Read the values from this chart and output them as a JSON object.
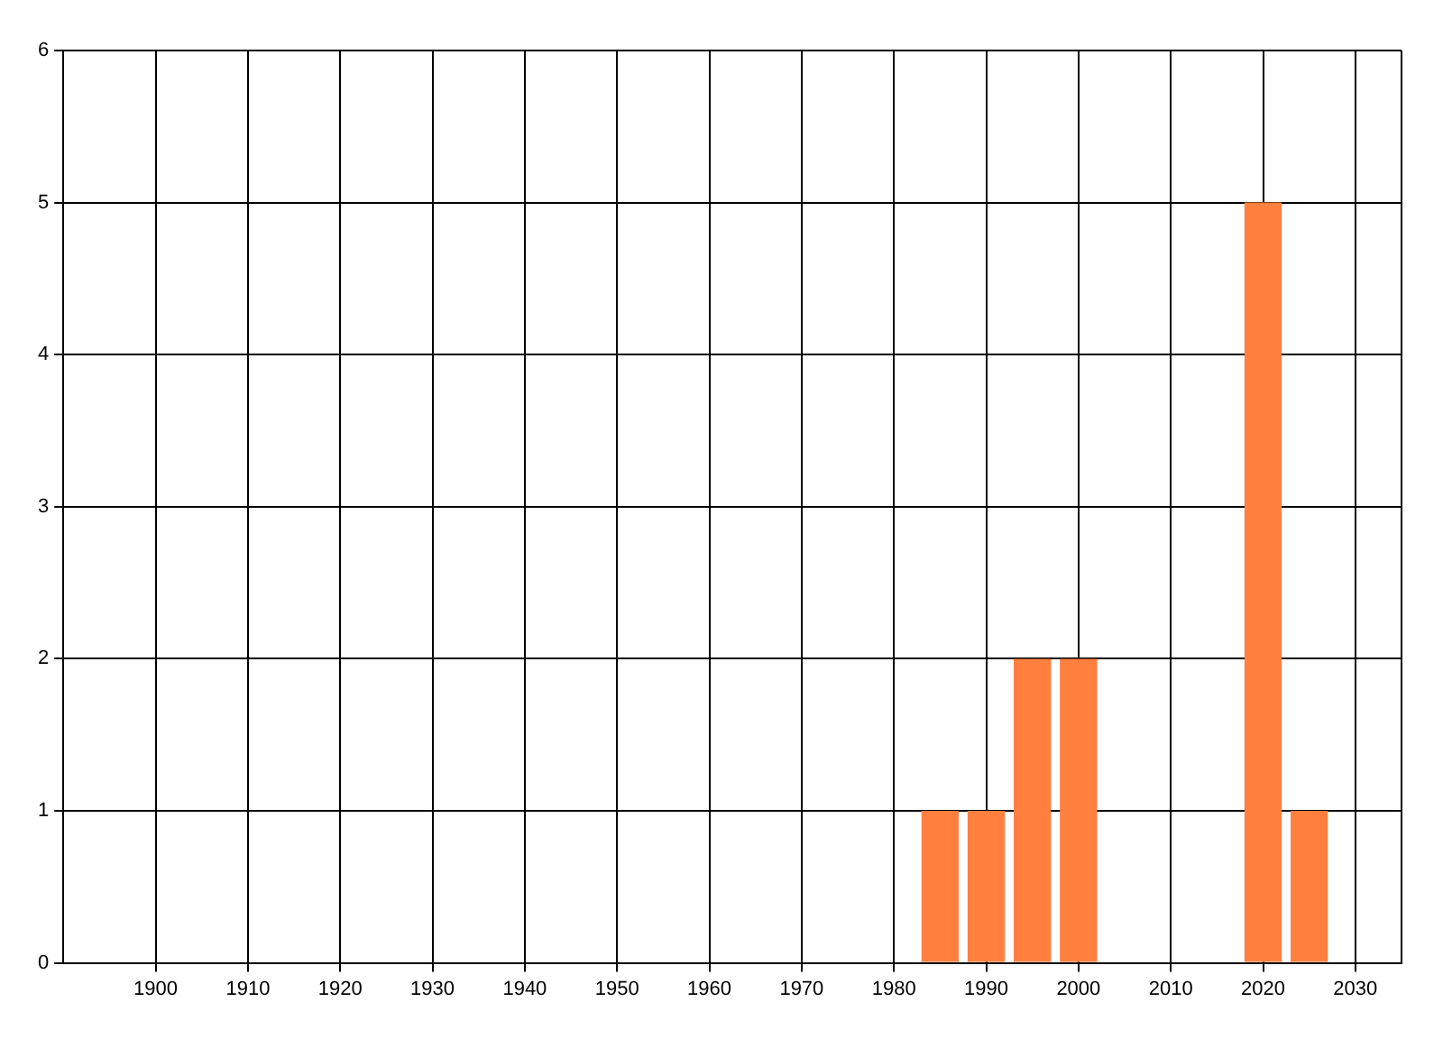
{
  "chart_data": {
    "type": "bar",
    "x": [
      1985,
      1990,
      1995,
      2000,
      2020,
      2025
    ],
    "values": [
      1,
      1,
      2,
      2,
      5,
      1
    ],
    "color": "#ff7f3f",
    "xlim": [
      1890,
      2035
    ],
    "xticks": [
      1900,
      1910,
      1920,
      1930,
      1940,
      1950,
      1960,
      1970,
      1980,
      1990,
      2000,
      2010,
      2020,
      2030
    ],
    "ylim": [
      0,
      6
    ],
    "yticks": [
      0,
      1,
      2,
      3,
      4,
      5,
      6
    ],
    "grid": true,
    "legend": false
  }
}
